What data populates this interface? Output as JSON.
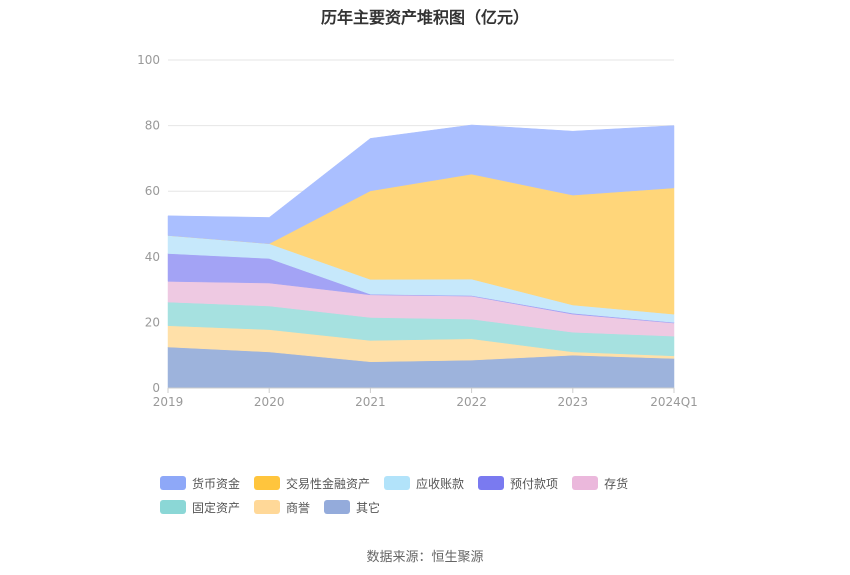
{
  "chart_data": {
    "type": "area",
    "stacked": true,
    "title": "历年主要资产堆积图（亿元）",
    "categories": [
      "2019",
      "2020",
      "2021",
      "2022",
      "2023",
      "2024Q1"
    ],
    "ylim": [
      0,
      100
    ],
    "yticks": [
      0,
      20,
      40,
      60,
      80,
      100
    ],
    "grid": true,
    "legend_position": "bottom",
    "series": [
      {
        "name": "其它",
        "color": "#9db3dc",
        "values": [
          12.5,
          11.0,
          8.0,
          8.5,
          10.0,
          9.0
        ]
      },
      {
        "name": "商誉",
        "color": "#ffe0a8",
        "values": [
          6.5,
          6.8,
          6.5,
          6.5,
          1.0,
          0.8
        ]
      },
      {
        "name": "固定资产",
        "color": "#a6e1e0",
        "values": [
          7.2,
          7.2,
          7.0,
          6.0,
          6.0,
          6.0
        ]
      },
      {
        "name": "存货",
        "color": "#eec9e2",
        "values": [
          6.3,
          7.0,
          6.9,
          7.0,
          5.5,
          4.0
        ]
      },
      {
        "name": "预付款项",
        "color": "#a3a3f5",
        "values": [
          8.5,
          7.5,
          0.2,
          0.2,
          0.3,
          0.2
        ]
      },
      {
        "name": "应收账款",
        "color": "#c6e8fb",
        "values": [
          5.5,
          4.5,
          4.5,
          5.0,
          2.5,
          2.5
        ]
      },
      {
        "name": "交易性金融资产",
        "color": "#ffd67a",
        "values": [
          0,
          0,
          27.0,
          32.0,
          33.5,
          38.5
        ]
      },
      {
        "name": "货币资金",
        "color": "#aabfff",
        "values": [
          6.0,
          8.0,
          16.0,
          15.0,
          19.5,
          19.0
        ]
      }
    ],
    "legend_order": [
      "货币资金",
      "交易性金融资产",
      "应收账款",
      "预付款项",
      "存货",
      "固定资产",
      "商誉",
      "其它"
    ],
    "legend_colors": {
      "货币资金": "#8ea8f8",
      "交易性金融资产": "#ffc53d",
      "应收账款": "#b2e3fa",
      "预付款项": "#7a7af0",
      "存货": "#ebb8dc",
      "固定资产": "#8bd7d6",
      "商誉": "#ffd898",
      "其它": "#94abdb"
    }
  },
  "source": "数据来源：恒生聚源"
}
